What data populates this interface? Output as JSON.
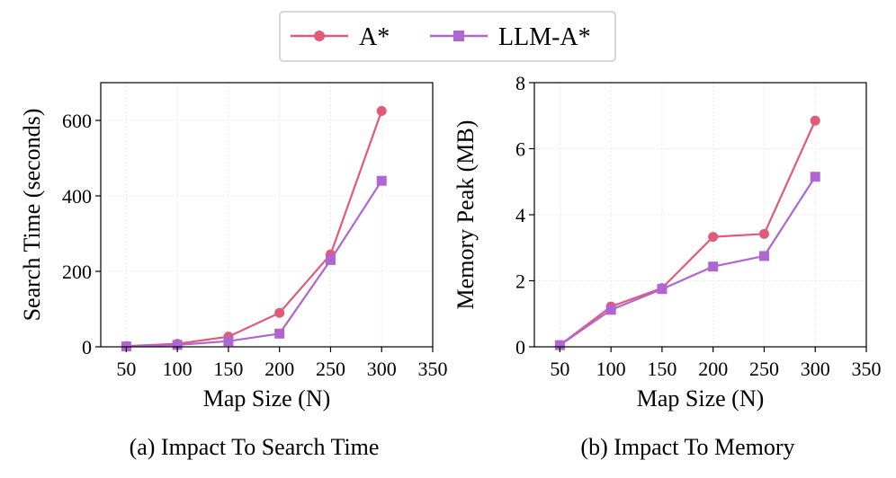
{
  "legend": {
    "entries": [
      "A*",
      "LLM-A*"
    ]
  },
  "colors": {
    "a_star": "#e05a7a",
    "llm_a_star": "#b066d0",
    "grid": "#e6e6e6",
    "axis": "#000000",
    "legend_border": "#cccccc"
  },
  "chart_data": [
    {
      "type": "line",
      "caption": "(a) Impact To Search Time",
      "xlabel": "Map Size (N)",
      "ylabel": "Search Time (seconds)",
      "xlim": [
        25,
        350
      ],
      "ylim": [
        0,
        700
      ],
      "xticks": [
        50,
        100,
        150,
        200,
        250,
        300,
        350
      ],
      "yticks": [
        0,
        200,
        400,
        600
      ],
      "grid": true,
      "x": [
        50,
        100,
        150,
        200,
        250,
        300
      ],
      "series": [
        {
          "name": "A*",
          "marker": "circle",
          "values": [
            2,
            8,
            27,
            90,
            245,
            625
          ]
        },
        {
          "name": "LLM-A*",
          "marker": "square",
          "values": [
            1,
            5,
            15,
            35,
            230,
            440
          ]
        }
      ]
    },
    {
      "type": "line",
      "caption": "(b) Impact To Memory",
      "xlabel": "Map Size (N)",
      "ylabel": "Memory Peak (MB)",
      "xlim": [
        25,
        350
      ],
      "ylim": [
        0,
        8
      ],
      "xticks": [
        50,
        100,
        150,
        200,
        250,
        300,
        350
      ],
      "yticks": [
        0,
        2,
        4,
        6,
        8
      ],
      "grid": true,
      "x": [
        50,
        100,
        150,
        200,
        250,
        300
      ],
      "series": [
        {
          "name": "A*",
          "marker": "circle",
          "values": [
            0.05,
            1.22,
            1.78,
            3.33,
            3.42,
            6.85
          ]
        },
        {
          "name": "LLM-A*",
          "marker": "square",
          "values": [
            0.05,
            1.12,
            1.75,
            2.43,
            2.75,
            5.15
          ]
        }
      ]
    }
  ]
}
